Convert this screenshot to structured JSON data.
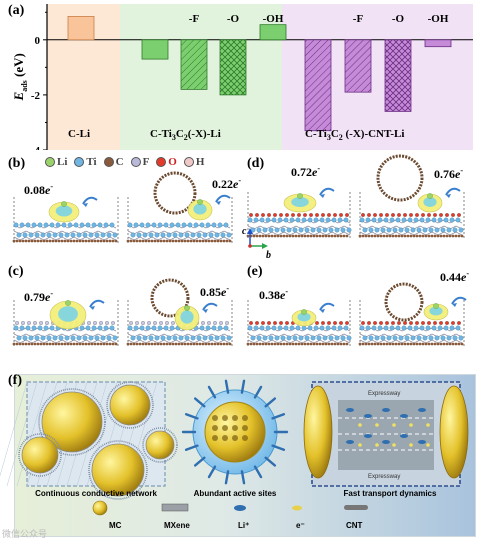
{
  "panel_a": {
    "letter": "(a)",
    "ylabel": "E",
    "ylabel_sub": "ads",
    "ylabel_unit": " (eV)",
    "group_labels": [
      "C-Li",
      "C-Ti₃C₂(-X)-Li",
      "C-Ti₃C₂ (-X)-CNT-Li"
    ],
    "chart_data": {
      "type": "bar",
      "ylabel": "Eads (eV)",
      "ylim": [
        -4,
        1.3
      ],
      "yticks": [
        -4,
        -2,
        0
      ],
      "categories": [
        "C-Li",
        "Ti3C2-Li",
        "Ti3C2-F-Li",
        "Ti3C2-O-Li",
        "Ti3C2-OH-Li",
        "CNT-Li",
        "CNT-F-Li",
        "CNT-O-Li",
        "CNT-OH-Li"
      ],
      "values": [
        0.85,
        -0.7,
        -1.8,
        -2.0,
        0.55,
        -3.3,
        -1.9,
        -2.6,
        -0.25
      ],
      "bar_labels": [
        "",
        "",
        "-F",
        "-O",
        "-OH",
        "",
        "-F",
        "-O",
        "-OH"
      ],
      "colors": [
        "#f9c49a",
        "#7ccf6e",
        "#7ccf6e",
        "#7ccf6e",
        "#7ccf6e",
        "#c58ad8",
        "#c58ad8",
        "#c58ad8",
        "#c58ad8"
      ],
      "hatch": [
        "none",
        "none",
        "diag",
        "cross",
        "none",
        "diag",
        "diag",
        "cross",
        "none"
      ],
      "group_backgrounds": [
        "#fde8d6",
        "#e2f3dd",
        "#f1e2f5"
      ]
    }
  },
  "legend": {
    "items": [
      {
        "label": "Li",
        "color": "#9bd36b"
      },
      {
        "label": "Ti",
        "color": "#6fb6e3"
      },
      {
        "label": "C",
        "color": "#8a5a3c"
      },
      {
        "label": "F",
        "color": "#b9b9d9"
      },
      {
        "label": "O",
        "color": "#e33a2a"
      },
      {
        "label": "H",
        "color": "#f0c8c8"
      }
    ]
  },
  "panels": {
    "b": {
      "letter": "(b)",
      "left": "0.08",
      "right": "0.22"
    },
    "c": {
      "letter": "(c)",
      "left": "0.79",
      "right": "0.85"
    },
    "d": {
      "letter": "(d)",
      "left": "0.72",
      "right": "0.76"
    },
    "e": {
      "letter": "(e)",
      "left": "0.38",
      "right": "0.44"
    },
    "electron": "e",
    "electron_sup": "-"
  },
  "axes": {
    "c": "c",
    "b": "b"
  },
  "panel_f": {
    "letter": "(f)",
    "captions": [
      "Continuous conductive network",
      "Abundant active sites",
      "Fast transport dynamics"
    ],
    "road_labels": [
      "Expressway",
      "Expressway"
    ],
    "legend": [
      "MC",
      "MXene",
      "Li⁺",
      "e⁻",
      "CNT"
    ]
  },
  "watermark": "微信公众号"
}
